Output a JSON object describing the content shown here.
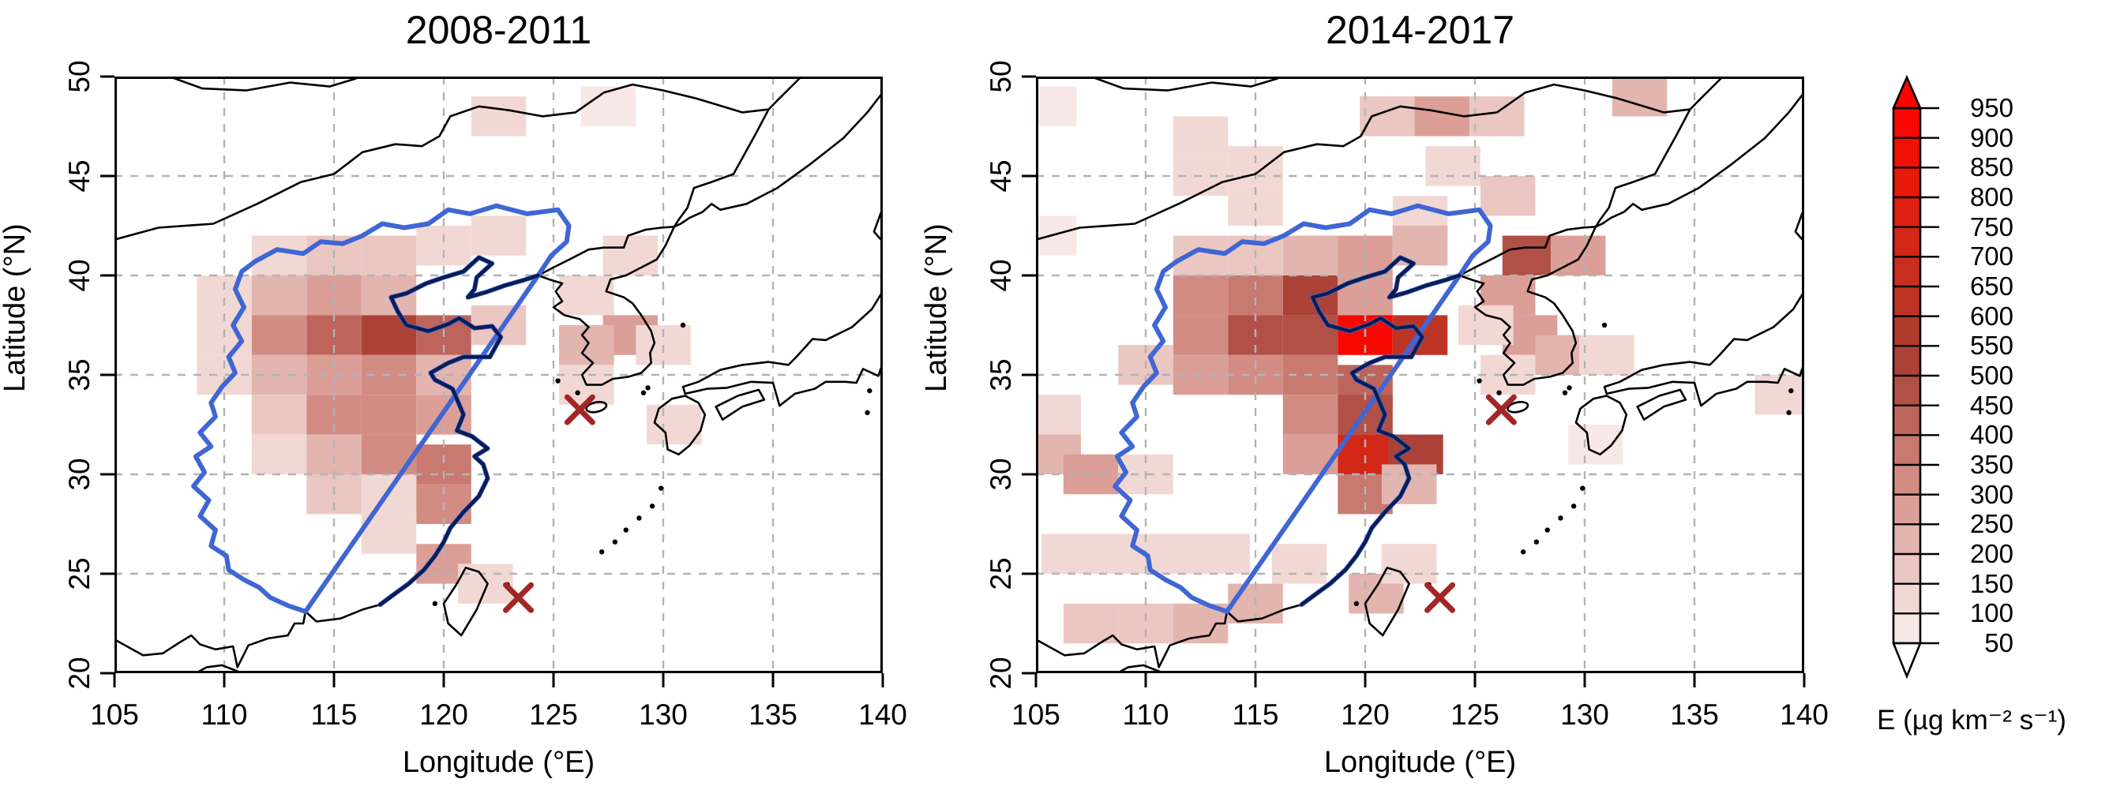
{
  "chart_data": {
    "type": "heatmap",
    "description_units": "µg km⁻² s⁻¹",
    "panels": [
      {
        "title": "2008-2011",
        "xlabel": "Longitude (°E)",
        "ylabel": "Latitude (°N)",
        "xlim": [
          105,
          140
        ],
        "ylim": [
          20,
          50
        ],
        "x_ticks": [
          105,
          110,
          115,
          120,
          125,
          130,
          135,
          140
        ],
        "y_ticks": [
          20,
          25,
          30,
          35,
          40,
          45,
          50
        ],
        "grid": true,
        "cell_size_deg": {
          "lon": 2.5,
          "lat": 2
        },
        "markers": [
          {
            "name": "station-x-jeju-area",
            "lon": 126.2,
            "lat": 33.25
          },
          {
            "name": "station-x-taiwan-area",
            "lon": 123.4,
            "lat": 23.8
          }
        ],
        "cells": [
          [
            122.5,
            48,
            120
          ],
          [
            127.5,
            48.5,
            90
          ],
          [
            112.5,
            41,
            130
          ],
          [
            115,
            41,
            160
          ],
          [
            117.5,
            41,
            150
          ],
          [
            120,
            41.5,
            110
          ],
          [
            122.5,
            42,
            100
          ],
          [
            110,
            39,
            110
          ],
          [
            112.5,
            39,
            200
          ],
          [
            115,
            39,
            250
          ],
          [
            117.5,
            39,
            200
          ],
          [
            110,
            37,
            140
          ],
          [
            112.5,
            37,
            300
          ],
          [
            115,
            37,
            430
          ],
          [
            117.5,
            37,
            520
          ],
          [
            120,
            37,
            430
          ],
          [
            122.5,
            37.5,
            150
          ],
          [
            110,
            35,
            100
          ],
          [
            112.5,
            35,
            200
          ],
          [
            115,
            35,
            280
          ],
          [
            117.5,
            35,
            300
          ],
          [
            120,
            35,
            200
          ],
          [
            112.5,
            33,
            150
          ],
          [
            115,
            33,
            300
          ],
          [
            117.5,
            33,
            330
          ],
          [
            120,
            33,
            250
          ],
          [
            112.5,
            31,
            100
          ],
          [
            115,
            31,
            200
          ],
          [
            117.5,
            31,
            300
          ],
          [
            120,
            30.5,
            350
          ],
          [
            115,
            29,
            150
          ],
          [
            117.5,
            29,
            140
          ],
          [
            120,
            28.5,
            300
          ],
          [
            117.5,
            27,
            130
          ],
          [
            120,
            25.5,
            250
          ],
          [
            121.9,
            24.5,
            100
          ],
          [
            126.5,
            39,
            130
          ],
          [
            128.5,
            41,
            130
          ],
          [
            128.5,
            37,
            250
          ],
          [
            126.5,
            36.5,
            200
          ],
          [
            130,
            36.5,
            140
          ],
          [
            126.5,
            34.5,
            100
          ],
          [
            130.5,
            32.5,
            100
          ]
        ]
      },
      {
        "title": "2014-2017",
        "xlabel": "Longitude (°E)",
        "ylabel": "Latitude (°N)",
        "xlim": [
          105,
          140
        ],
        "ylim": [
          20,
          50
        ],
        "x_ticks": [
          105,
          110,
          115,
          120,
          125,
          130,
          135,
          140
        ],
        "y_ticks": [
          20,
          25,
          30,
          35,
          40,
          45,
          50
        ],
        "grid": true,
        "cell_size_deg": {
          "lon": 2.5,
          "lat": 2
        },
        "markers": [
          {
            "name": "station-x-jeju-area",
            "lon": 126.2,
            "lat": 33.25
          },
          {
            "name": "station-x-taiwan-area",
            "lon": 123.4,
            "lat": 23.8
          }
        ],
        "cells": [
          [
            105.6,
            48.5,
            90
          ],
          [
            105.6,
            42,
            90
          ],
          [
            112.5,
            47,
            110
          ],
          [
            112.5,
            45,
            120
          ],
          [
            115,
            45.5,
            110
          ],
          [
            115,
            43.5,
            130
          ],
          [
            121,
            48,
            150
          ],
          [
            123.5,
            48,
            250
          ],
          [
            126,
            48,
            150
          ],
          [
            132.5,
            49,
            220
          ],
          [
            124,
            45.5,
            110
          ],
          [
            126.5,
            44,
            150
          ],
          [
            122.5,
            43,
            100
          ],
          [
            112.5,
            41,
            150
          ],
          [
            115,
            41,
            180
          ],
          [
            117.5,
            41,
            220
          ],
          [
            120,
            41,
            250
          ],
          [
            122.5,
            41.5,
            200
          ],
          [
            127.5,
            41,
            450
          ],
          [
            129.7,
            41,
            280
          ],
          [
            112.5,
            39,
            300
          ],
          [
            115,
            39,
            350
          ],
          [
            117.5,
            39,
            500
          ],
          [
            120,
            39,
            250
          ],
          [
            112.5,
            37,
            300
          ],
          [
            115,
            37,
            470
          ],
          [
            117.5,
            37,
            480
          ],
          [
            120,
            37,
            900
          ],
          [
            122.5,
            37,
            600
          ],
          [
            110,
            35.5,
            150
          ],
          [
            112.5,
            35,
            250
          ],
          [
            115,
            35,
            300
          ],
          [
            117.5,
            35,
            350
          ],
          [
            120,
            34.5,
            400
          ],
          [
            117.5,
            33,
            300
          ],
          [
            120,
            33,
            450
          ],
          [
            117.5,
            31,
            250
          ],
          [
            120,
            31,
            700
          ],
          [
            122.3,
            31,
            500
          ],
          [
            120,
            29,
            350
          ],
          [
            122,
            29.5,
            200
          ],
          [
            105.8,
            33,
            120
          ],
          [
            105.8,
            31,
            200
          ],
          [
            107.5,
            30,
            250
          ],
          [
            110,
            30,
            130
          ],
          [
            106.5,
            26,
            100
          ],
          [
            109,
            26,
            100
          ],
          [
            111.5,
            26,
            110
          ],
          [
            113.5,
            26,
            120
          ],
          [
            107.5,
            22.5,
            180
          ],
          [
            110,
            22.5,
            180
          ],
          [
            112.5,
            22.5,
            200
          ],
          [
            115,
            23.5,
            200
          ],
          [
            117,
            25.5,
            130
          ],
          [
            120.5,
            24,
            220
          ],
          [
            122,
            25.5,
            100
          ],
          [
            126.5,
            39,
            250
          ],
          [
            127.5,
            37,
            280
          ],
          [
            125.5,
            37.5,
            120
          ],
          [
            126.5,
            35,
            130
          ],
          [
            129,
            36,
            200
          ],
          [
            131,
            36,
            100
          ],
          [
            139,
            34,
            100
          ],
          [
            130.5,
            31.5,
            80
          ]
        ]
      }
    ],
    "colorbar": {
      "title": "E (µg km⁻² s⁻¹)",
      "tick_min": 50,
      "tick_max": 950,
      "tick_step": 50,
      "tick_labels": [
        "950",
        "900",
        "850",
        "800",
        "750",
        "700",
        "650",
        "600",
        "550",
        "500",
        "450",
        "400",
        "350",
        "300",
        "250",
        "200",
        "150",
        "100",
        "50"
      ],
      "band_colors": [
        "#f8e8e5",
        "#f2d8d4",
        "#ebc7c2",
        "#e3b5af",
        "#db9f98",
        "#d28c84",
        "#c87970",
        "#bd655c",
        "#b15046",
        "#ac4237",
        "#b23a2b",
        "#bd3425",
        "#c82e1e",
        "#d32717",
        "#dd2010",
        "#e6190a",
        "#ef1105",
        "#f80801"
      ],
      "over_color": "#fc0300",
      "under_color": "#ffffff"
    }
  },
  "styles": {
    "grid_color": "#b3b3b3",
    "coast_color": "#000000",
    "china_coast_color": "#0a1c52",
    "region_outline_color": "#3f66d4",
    "marker_color": "#a32626",
    "frame_color": "#000000",
    "background": "#ffffff"
  }
}
